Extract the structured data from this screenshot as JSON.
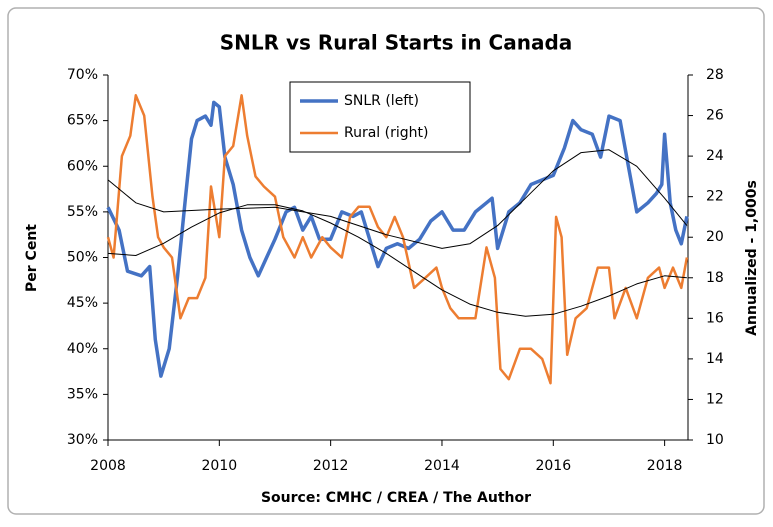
{
  "chart_data": {
    "type": "line",
    "title": "SNLR vs Rural Starts in Canada",
    "ylabel": "Per Cent",
    "y2label": "Annualized - 1,000s",
    "source": "Source:  CMHC / CREA / The Author",
    "xlim": [
      2008,
      2018.42
    ],
    "xticks": [
      2008,
      2010,
      2012,
      2014,
      2016,
      2018
    ],
    "ylim": [
      30,
      70
    ],
    "yticks": [
      {
        "value": 30,
        "label": "30%"
      },
      {
        "value": 35,
        "label": "35%"
      },
      {
        "value": 40,
        "label": "40%"
      },
      {
        "value": 45,
        "label": "45%"
      },
      {
        "value": 50,
        "label": "50%"
      },
      {
        "value": 55,
        "label": "55%"
      },
      {
        "value": 60,
        "label": "60%"
      },
      {
        "value": 65,
        "label": "65%"
      },
      {
        "value": 70,
        "label": "70%"
      }
    ],
    "y2lim": [
      10,
      28
    ],
    "y2ticks": [
      10,
      12,
      14,
      16,
      18,
      20,
      22,
      24,
      26,
      28
    ],
    "legend": "top-center",
    "series": [
      {
        "name": "SNLR (left)",
        "color": "#4472c4",
        "width": 3.5,
        "x": [
          2008.0,
          2008.2,
          2008.35,
          2008.6,
          2008.75,
          2008.85,
          2008.95,
          2009.1,
          2009.25,
          2009.4,
          2009.5,
          2009.6,
          2009.75,
          2009.85,
          2009.9,
          2010.0,
          2010.1,
          2010.25,
          2010.4,
          2010.55,
          2010.7,
          2010.85,
          2011.0,
          2011.2,
          2011.35,
          2011.5,
          2011.65,
          2011.8,
          2012.0,
          2012.2,
          2012.4,
          2012.55,
          2012.7,
          2012.85,
          2013.0,
          2013.2,
          2013.4,
          2013.6,
          2013.8,
          2014.0,
          2014.2,
          2014.4,
          2014.6,
          2014.8,
          2014.9,
          2015.0,
          2015.2,
          2015.4,
          2015.6,
          2015.8,
          2016.0,
          2016.2,
          2016.35,
          2016.5,
          2016.7,
          2016.85,
          2017.0,
          2017.2,
          2017.35,
          2017.5,
          2017.7,
          2017.85,
          2017.95,
          2018.0,
          2018.1,
          2018.2,
          2018.3,
          2018.4
        ],
        "values": [
          55.5,
          53,
          48.5,
          48,
          49,
          41,
          37,
          40,
          48,
          57,
          63,
          65,
          65.5,
          64.5,
          67,
          66.5,
          61,
          58,
          53,
          50,
          48,
          50,
          52,
          55,
          55.5,
          53,
          54.5,
          52,
          52,
          55,
          54.5,
          55,
          52,
          49,
          51,
          51.5,
          51,
          52,
          54,
          55,
          53,
          53,
          55,
          56,
          56.5,
          51,
          55,
          56,
          58,
          58.5,
          59,
          62,
          65,
          64,
          63.5,
          61,
          65.5,
          65,
          60,
          55,
          56,
          57,
          58,
          63.5,
          56,
          53,
          51.5,
          54.5
        ]
      },
      {
        "name": "Rural (right)",
        "color": "#ed7d31",
        "width": 2.5,
        "axis": "y2",
        "x": [
          2008.0,
          2008.1,
          2008.25,
          2008.4,
          2008.5,
          2008.65,
          2008.8,
          2008.9,
          2009.0,
          2009.15,
          2009.3,
          2009.45,
          2009.6,
          2009.75,
          2009.85,
          2010.0,
          2010.1,
          2010.25,
          2010.4,
          2010.5,
          2010.65,
          2010.8,
          2011.0,
          2011.15,
          2011.35,
          2011.5,
          2011.65,
          2011.85,
          2012.0,
          2012.2,
          2012.35,
          2012.5,
          2012.7,
          2012.85,
          2013.0,
          2013.15,
          2013.3,
          2013.5,
          2013.7,
          2013.9,
          2014.0,
          2014.15,
          2014.3,
          2014.6,
          2014.8,
          2014.95,
          2015.05,
          2015.2,
          2015.4,
          2015.6,
          2015.8,
          2015.95,
          2016.05,
          2016.15,
          2016.25,
          2016.4,
          2016.6,
          2016.8,
          2017.0,
          2017.1,
          2017.3,
          2017.5,
          2017.7,
          2017.9,
          2018.0,
          2018.15,
          2018.3,
          2018.4
        ],
        "values": [
          20,
          19,
          24,
          25,
          27,
          26,
          22,
          20,
          19.5,
          19,
          16,
          17,
          17,
          18,
          22.5,
          20,
          24,
          24.5,
          27,
          25,
          23,
          22.5,
          22,
          20,
          19,
          20,
          19,
          20,
          19.5,
          19,
          21,
          21.5,
          21.5,
          20.5,
          20,
          21,
          20,
          17.5,
          18,
          18.5,
          17.5,
          16.5,
          16,
          16,
          19.5,
          18,
          13.5,
          13,
          14.5,
          14.5,
          14,
          12.8,
          21,
          20,
          14.2,
          16,
          16.5,
          18.5,
          18.5,
          16,
          17.5,
          16,
          18,
          18.5,
          17.5,
          18.5,
          17.5,
          19
        ]
      },
      {
        "color": "#000000",
        "width": 1,
        "x": [
          2008.0,
          2008.5,
          2009.0,
          2010.0,
          2011.0,
          2012.0,
          2013.0,
          2014.0,
          2014.5,
          2015.0,
          2015.5,
          2016.0,
          2016.5,
          2017.0,
          2017.5,
          2018.0,
          2018.4
        ],
        "values": [
          58.5,
          56,
          55,
          55.3,
          55.5,
          54.5,
          52.5,
          51,
          51.5,
          53.5,
          56.5,
          59.5,
          61.5,
          61.8,
          60,
          56.5,
          53.5
        ]
      },
      {
        "color": "#000000",
        "width": 1,
        "axis": "y2",
        "x": [
          2008.0,
          2008.5,
          2009.0,
          2009.5,
          2010.0,
          2010.5,
          2011.0,
          2011.5,
          2012.0,
          2012.5,
          2013.0,
          2013.5,
          2014.0,
          2014.5,
          2015.0,
          2015.5,
          2016.0,
          2016.5,
          2017.0,
          2017.5,
          2018.0,
          2018.4
        ],
        "values": [
          19.2,
          19.1,
          19.7,
          20.5,
          21.2,
          21.6,
          21.6,
          21.3,
          20.7,
          20.0,
          19.2,
          18.3,
          17.4,
          16.7,
          16.3,
          16.1,
          16.2,
          16.6,
          17.1,
          17.7,
          18.1,
          18.0
        ]
      }
    ]
  }
}
